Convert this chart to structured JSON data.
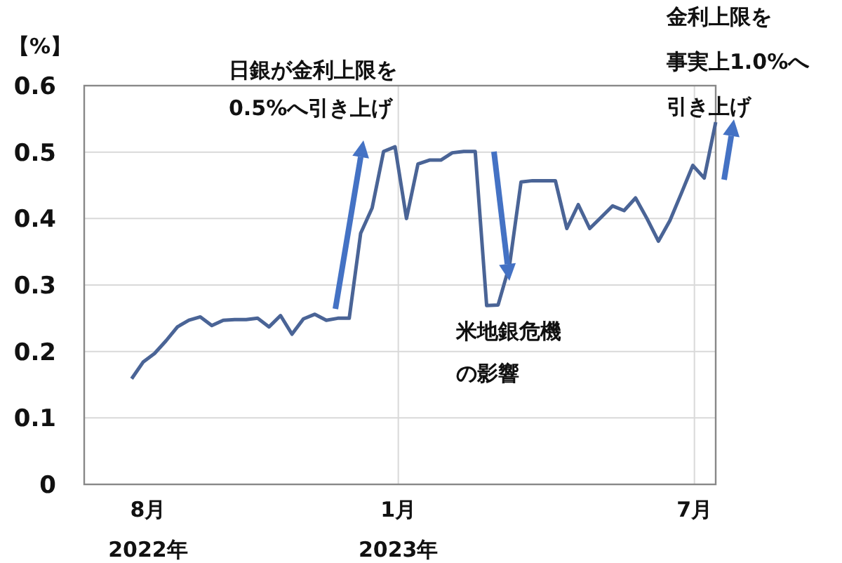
{
  "chart_data": {
    "type": "line",
    "ylabel": "【%】",
    "x": [
      "2022-07-22",
      "2022-07-29",
      "2022-08-05",
      "2022-08-12",
      "2022-08-19",
      "2022-08-26",
      "2022-09-02",
      "2022-09-09",
      "2022-09-16",
      "2022-09-23",
      "2022-09-30",
      "2022-10-07",
      "2022-10-14",
      "2022-10-21",
      "2022-10-28",
      "2022-11-04",
      "2022-11-11",
      "2022-11-18",
      "2022-11-25",
      "2022-12-02",
      "2022-12-09",
      "2022-12-16",
      "2022-12-23",
      "2022-12-30",
      "2023-01-06",
      "2023-01-13",
      "2023-01-20",
      "2023-01-27",
      "2023-02-03",
      "2023-02-10",
      "2023-02-17",
      "2023-02-24",
      "2023-03-03",
      "2023-03-10",
      "2023-03-17",
      "2023-03-24",
      "2023-03-31",
      "2023-04-07",
      "2023-04-14",
      "2023-04-21",
      "2023-04-28",
      "2023-05-05",
      "2023-05-12",
      "2023-05-19",
      "2023-05-26",
      "2023-06-02",
      "2023-06-09",
      "2023-06-16",
      "2023-06-23",
      "2023-06-30",
      "2023-07-07",
      "2023-07-14"
    ],
    "series": [
      {
        "color": "#4a6496",
        "values": [
          0.159,
          0.184,
          0.197,
          0.216,
          0.237,
          0.247,
          0.252,
          0.239,
          0.247,
          0.248,
          0.248,
          0.25,
          0.237,
          0.254,
          0.226,
          0.249,
          0.256,
          0.247,
          0.25,
          0.25,
          0.378,
          0.416,
          0.501,
          0.508,
          0.4,
          0.482,
          0.488,
          0.488,
          0.499,
          0.501,
          0.501,
          0.269,
          0.27,
          0.33,
          0.455,
          0.457,
          0.457,
          0.457,
          0.385,
          0.421,
          0.385,
          0.402,
          0.419,
          0.412,
          0.431,
          0.4,
          0.366,
          0.397,
          0.438,
          0.48,
          0.461,
          0.545
        ]
      }
    ],
    "xlim": [
      "2022-06-23",
      "2023-07-14"
    ],
    "xticks": [
      {
        "value": "2022-08-01",
        "label": "8月\n2022年"
      },
      {
        "value": "2023-01-01",
        "label": "1月\n2023年"
      },
      {
        "value": "2023-07-01",
        "label": "7月"
      }
    ],
    "ylim": [
      0,
      0.6
    ],
    "yticks": [
      0,
      0.1,
      0.2,
      0.3,
      0.4,
      0.5,
      0.6
    ],
    "grid": true,
    "marker": "none",
    "line_style": "solid",
    "annotations": [
      "日銀が金利上限を",
      "0.5%へ引き上げ",
      "米地銀危機",
      "の影響",
      "金利上限を",
      "事実上1.0%へ",
      "引き上げ"
    ]
  }
}
